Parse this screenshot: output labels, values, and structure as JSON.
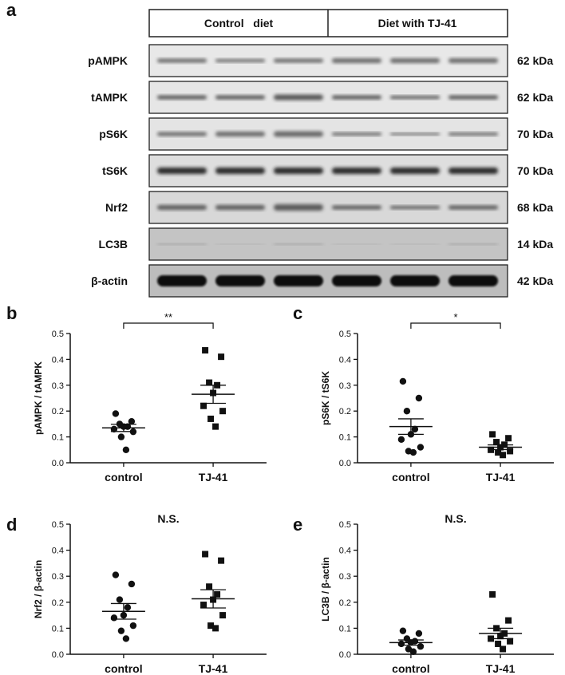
{
  "panel_letters": {
    "a": "a",
    "b": "b",
    "c": "c",
    "d": "d",
    "e": "e"
  },
  "blot": {
    "groups": [
      "Control   diet",
      "Diet with TJ-41"
    ],
    "rows": [
      {
        "name": "pAMPK",
        "mw": "62 kDa"
      },
      {
        "name": "tAMPK",
        "mw": "62 kDa"
      },
      {
        "name": "pS6K",
        "mw": "70 kDa"
      },
      {
        "name": "tS6K",
        "mw": "70 kDa"
      },
      {
        "name": "Nrf2",
        "mw": "68 kDa"
      },
      {
        "name": "LC3B",
        "mw": "14 kDa"
      },
      {
        "name": "β-actin",
        "mw": "42 kDa"
      }
    ]
  },
  "chart_data": [
    {
      "panel": "b",
      "type": "scatter",
      "categories": [
        "control",
        "TJ-41"
      ],
      "ylabel": "pAMPK / tAMPK",
      "ylim": [
        0,
        0.5
      ],
      "yticks": [
        "0.0",
        "0.1",
        "0.2",
        "0.3",
        "0.4",
        "0.5"
      ],
      "annotation": "**",
      "series": [
        {
          "category": "control",
          "marker": "circle",
          "values": [
            0.19,
            0.16,
            0.15,
            0.14,
            0.14,
            0.13,
            0.12,
            0.1,
            0.05
          ],
          "mean": 0.135,
          "sem": 0.014
        },
        {
          "category": "TJ-41",
          "marker": "square",
          "values": [
            0.435,
            0.41,
            0.31,
            0.3,
            0.27,
            0.22,
            0.2,
            0.17,
            0.14
          ],
          "mean": 0.265,
          "sem": 0.035
        }
      ]
    },
    {
      "panel": "c",
      "type": "scatter",
      "categories": [
        "control",
        "TJ-41"
      ],
      "ylabel": "pS6K / tS6K",
      "ylim": [
        0,
        0.5
      ],
      "yticks": [
        "0.0",
        "0.1",
        "0.2",
        "0.3",
        "0.4",
        "0.5"
      ],
      "annotation": "*",
      "series": [
        {
          "category": "control",
          "marker": "circle",
          "values": [
            0.315,
            0.25,
            0.2,
            0.13,
            0.11,
            0.09,
            0.06,
            0.045,
            0.04
          ],
          "mean": 0.14,
          "sem": 0.03
        },
        {
          "category": "TJ-41",
          "marker": "square",
          "values": [
            0.11,
            0.095,
            0.08,
            0.07,
            0.06,
            0.05,
            0.045,
            0.04,
            0.03
          ],
          "mean": 0.06,
          "sem": 0.009
        }
      ]
    },
    {
      "panel": "d",
      "type": "scatter",
      "categories": [
        "control",
        "TJ-41"
      ],
      "ylabel": "Nrf2 / β-actin",
      "ylim": [
        0,
        0.5
      ],
      "yticks": [
        "0.0",
        "0.1",
        "0.2",
        "0.3",
        "0.4",
        "0.5"
      ],
      "annotation": "N.S.",
      "series": [
        {
          "category": "control",
          "marker": "circle",
          "values": [
            0.305,
            0.27,
            0.21,
            0.18,
            0.15,
            0.14,
            0.11,
            0.09,
            0.06
          ],
          "mean": 0.165,
          "sem": 0.03
        },
        {
          "category": "TJ-41",
          "marker": "square",
          "values": [
            0.385,
            0.36,
            0.26,
            0.23,
            0.21,
            0.19,
            0.15,
            0.11,
            0.1
          ],
          "mean": 0.213,
          "sem": 0.035
        }
      ]
    },
    {
      "panel": "e",
      "type": "scatter",
      "categories": [
        "control",
        "TJ-41"
      ],
      "ylabel": "LC3B / β-actin",
      "ylim": [
        0,
        0.5
      ],
      "yticks": [
        "0.0",
        "0.1",
        "0.2",
        "0.3",
        "0.4",
        "0.5"
      ],
      "annotation": "N.S.",
      "series": [
        {
          "category": "control",
          "marker": "circle",
          "values": [
            0.09,
            0.08,
            0.06,
            0.05,
            0.045,
            0.04,
            0.03,
            0.02,
            0.01
          ],
          "mean": 0.045,
          "sem": 0.01
        },
        {
          "category": "TJ-41",
          "marker": "square",
          "values": [
            0.23,
            0.13,
            0.1,
            0.08,
            0.07,
            0.06,
            0.05,
            0.04,
            0.02
          ],
          "mean": 0.08,
          "sem": 0.02
        }
      ]
    }
  ]
}
